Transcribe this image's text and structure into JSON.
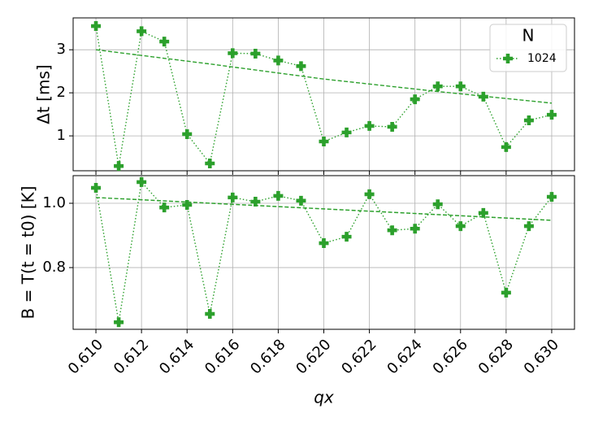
{
  "chart_data": [
    {
      "type": "line",
      "ylabel": "Δt [ms]",
      "xlim": [
        0.609,
        0.631
      ],
      "xticks": [
        0.61,
        0.612,
        0.614,
        0.616,
        0.618,
        0.62,
        0.622,
        0.624,
        0.626,
        0.628,
        0.63
      ],
      "ylim": [
        0.19,
        3.74
      ],
      "yticks": [
        1,
        2,
        3
      ],
      "grid": true,
      "legend_title": "N",
      "legend_loc": "upper right",
      "series": [
        {
          "name": "1024",
          "color": "#2ca02c",
          "linestyle": "dotted",
          "marker": "P",
          "x": [
            0.61,
            0.611,
            0.612,
            0.613,
            0.614,
            0.615,
            0.616,
            0.617,
            0.618,
            0.619,
            0.62,
            0.621,
            0.622,
            0.623,
            0.624,
            0.625,
            0.626,
            0.627,
            0.628,
            0.629,
            0.63
          ],
          "values": [
            3.55,
            0.3,
            3.43,
            3.19,
            1.04,
            0.36,
            2.92,
            2.91,
            2.75,
            2.62,
            0.87,
            1.08,
            1.23,
            1.21,
            1.85,
            2.15,
            2.15,
            1.91,
            0.74,
            1.36,
            1.49
          ]
        },
        {
          "color": "#2ca02c",
          "linestyle": "dashed",
          "x": [
            0.61,
            0.615,
            0.62,
            0.625,
            0.63
          ],
          "values": [
            3.0,
            2.67,
            2.32,
            2.03,
            1.76
          ]
        }
      ]
    },
    {
      "type": "line",
      "ylabel": "B = T(t = t0) [K]",
      "xlabel": "qx",
      "xlim": [
        0.609,
        0.631
      ],
      "xticks": [
        {
          "value": 0.61,
          "label": "0.610"
        },
        {
          "value": 0.612,
          "label": "0.612"
        },
        {
          "value": 0.614,
          "label": "0.614"
        },
        {
          "value": 0.616,
          "label": "0.616"
        },
        {
          "value": 0.618,
          "label": "0.618"
        },
        {
          "value": 0.62,
          "label": "0.620"
        },
        {
          "value": 0.622,
          "label": "0.622"
        },
        {
          "value": 0.624,
          "label": "0.624"
        },
        {
          "value": 0.626,
          "label": "0.626"
        },
        {
          "value": 0.628,
          "label": "0.628"
        },
        {
          "value": 0.63,
          "label": "0.630"
        }
      ],
      "ylim": [
        0.608,
        1.086
      ],
      "yticks": [
        0.8,
        {
          "value": 1.0,
          "label": "1.0"
        }
      ],
      "grid": true,
      "series": [
        {
          "color": "#2ca02c",
          "linestyle": "dotted",
          "marker": "P",
          "x": [
            0.61,
            0.611,
            0.612,
            0.613,
            0.614,
            0.615,
            0.616,
            0.617,
            0.618,
            0.619,
            0.62,
            0.621,
            0.622,
            0.623,
            0.624,
            0.625,
            0.626,
            0.627,
            0.628,
            0.629,
            0.63
          ],
          "values": [
            1.048,
            0.63,
            1.066,
            0.987,
            0.995,
            0.656,
            1.018,
            1.005,
            1.023,
            1.008,
            0.876,
            0.896,
            1.028,
            0.916,
            0.921,
            0.997,
            0.929,
            0.97,
            0.722,
            0.929,
            1.02
          ]
        },
        {
          "color": "#2ca02c",
          "linestyle": "dashed",
          "x": [
            0.61,
            0.63
          ],
          "values": [
            1.018,
            0.947
          ]
        }
      ]
    }
  ]
}
